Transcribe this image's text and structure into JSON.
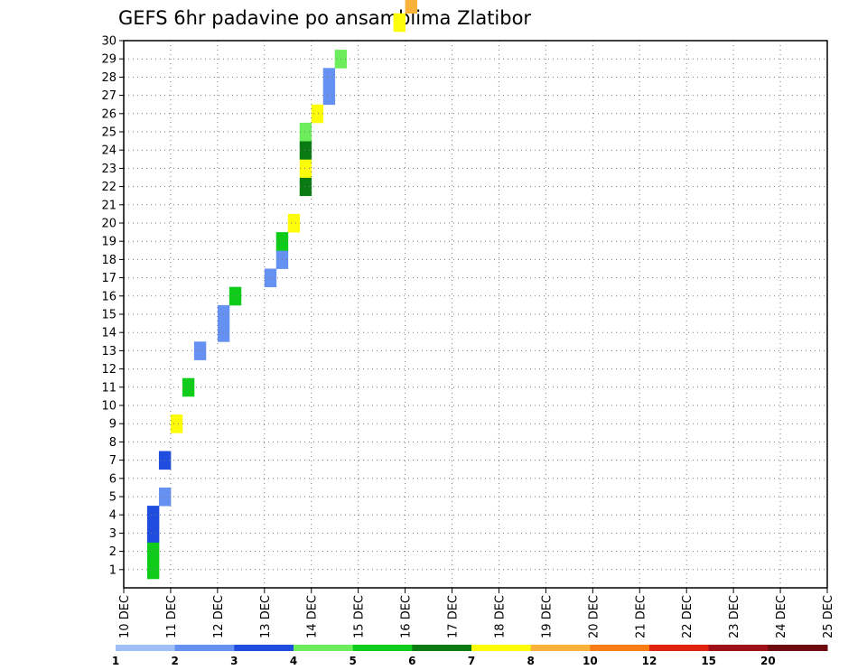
{
  "chart_data": {
    "type": "heatmap",
    "title": "GEFS 6hr padavine po ansamblima Zlatibor",
    "xlabel": "",
    "ylabel": "",
    "x_ticks": [
      "10 DEC",
      "11 DEC",
      "12 DEC",
      "13 DEC",
      "14 DEC",
      "15 DEC",
      "16 DEC",
      "17 DEC",
      "18 DEC",
      "19 DEC",
      "20 DEC",
      "21 DEC",
      "22 DEC",
      "23 DEC",
      "24 DEC",
      "25 DEC"
    ],
    "y_ticks": [
      1,
      2,
      3,
      4,
      5,
      6,
      7,
      8,
      9,
      10,
      11,
      12,
      13,
      14,
      15,
      16,
      17,
      18,
      19,
      20,
      21,
      22,
      23,
      24,
      25,
      26,
      27,
      28,
      29,
      30
    ],
    "time_steps_per_day": 4,
    "ylim": [
      0,
      30
    ],
    "legend": {
      "levels": [
        1,
        2,
        3,
        4,
        5,
        6,
        7,
        8,
        10,
        12,
        15,
        20
      ],
      "colors": [
        "#a0bff7",
        "#6591f2",
        "#1f4de0",
        "#6cee5c",
        "#10cc1a",
        "#0a7a12",
        "#fdfd0a",
        "#fbb23a",
        "#f77c14",
        "#e0220e",
        "#a01018",
        "#6e0a10"
      ]
    },
    "cells": [
      [
        2,
        1,
        4
      ],
      [
        2,
        2,
        4
      ],
      [
        2,
        3,
        2
      ],
      [
        2,
        4,
        2
      ],
      [
        3,
        5,
        1
      ],
      [
        3,
        7,
        2
      ],
      [
        4,
        9,
        6
      ],
      [
        5,
        11,
        4
      ],
      [
        6,
        13,
        1
      ],
      [
        8,
        14,
        1
      ],
      [
        8,
        15,
        1
      ],
      [
        9,
        16,
        4
      ],
      [
        12,
        17,
        1
      ],
      [
        13,
        18,
        1
      ],
      [
        13,
        19,
        4
      ],
      [
        14,
        20,
        6
      ],
      [
        15,
        22,
        5
      ],
      [
        15,
        23,
        6
      ],
      [
        15,
        24,
        5
      ],
      [
        15,
        25,
        3
      ],
      [
        16,
        26,
        6
      ],
      [
        17,
        27,
        1
      ],
      [
        17,
        28,
        1
      ],
      [
        18,
        29,
        3
      ],
      [
        23,
        31,
        6
      ],
      [
        24,
        32,
        7
      ],
      [
        24,
        33,
        8
      ],
      [
        29,
        35,
        5
      ],
      [
        29,
        36,
        5
      ],
      [
        34,
        37,
        2
      ],
      [
        34,
        38,
        2
      ],
      [
        35,
        39,
        2
      ],
      [
        36,
        40,
        2
      ],
      [
        36,
        41,
        2
      ],
      [
        37,
        42,
        2
      ],
      [
        37,
        43,
        2
      ],
      [
        38,
        44,
        2
      ],
      [
        38,
        45,
        2
      ],
      [
        39,
        46,
        3
      ],
      [
        39,
        47,
        3
      ],
      [
        40,
        48,
        3
      ],
      [
        40,
        49,
        3
      ],
      [
        41,
        50,
        3
      ],
      [
        41,
        51,
        3
      ],
      [
        42,
        52,
        3
      ],
      [
        42,
        53,
        1
      ],
      [
        43,
        54,
        1
      ],
      [
        44,
        55,
        1
      ],
      [
        44,
        56,
        1
      ],
      [
        45,
        57,
        1
      ],
      [
        46,
        58,
        1
      ],
      [
        46,
        59,
        1
      ],
      [
        47,
        60,
        1
      ],
      [
        49,
        63,
        2
      ],
      [
        50,
        64,
        6
      ],
      [
        51,
        65,
        6
      ],
      [
        52,
        66,
        6
      ],
      [
        53,
        67,
        6
      ],
      [
        53,
        68,
        6
      ],
      [
        54,
        70,
        6
      ],
      [
        55,
        71,
        5
      ],
      [
        58,
        72,
        10
      ],
      [
        59,
        73,
        9
      ],
      [
        60,
        74,
        11
      ],
      [
        62,
        76,
        4
      ],
      [
        63,
        77,
        6
      ],
      [
        63,
        78,
        9
      ],
      [
        63,
        79,
        8
      ],
      [
        64,
        80,
        3
      ],
      [
        65,
        81,
        3
      ],
      [
        65,
        82,
        3
      ],
      [
        66,
        84,
        1
      ],
      [
        67,
        85,
        3
      ],
      [
        68,
        86,
        3
      ],
      [
        69,
        87,
        2
      ],
      [
        69,
        88,
        1
      ],
      [
        70,
        89,
        1
      ],
      [
        70,
        90,
        1
      ],
      [
        70,
        91,
        8
      ],
      [
        71,
        92,
        1
      ],
      [
        71,
        93,
        1
      ],
      [
        71,
        94,
        9
      ],
      [
        72,
        95,
        1
      ],
      [
        72,
        96,
        3
      ],
      [
        73,
        97,
        5
      ],
      [
        73,
        98,
        3
      ],
      [
        74,
        99,
        2
      ],
      [
        74,
        100,
        2
      ],
      [
        75,
        101,
        6
      ],
      [
        76,
        102,
        8
      ],
      [
        76,
        103,
        5
      ],
      [
        77,
        104,
        4
      ],
      [
        77,
        105,
        1
      ],
      [
        78,
        106,
        6
      ],
      [
        78,
        107,
        6
      ],
      [
        79,
        108,
        2
      ],
      [
        80,
        109,
        1
      ],
      [
        80,
        110,
        1
      ],
      [
        81,
        111,
        1
      ],
      [
        81,
        112,
        5
      ],
      [
        82,
        113,
        5
      ],
      [
        82,
        114,
        5
      ],
      [
        83,
        115,
        7
      ],
      [
        84,
        116,
        3
      ],
      [
        85,
        117,
        3
      ],
      [
        86,
        118,
        3
      ],
      [
        86,
        119,
        3
      ]
    ]
  }
}
